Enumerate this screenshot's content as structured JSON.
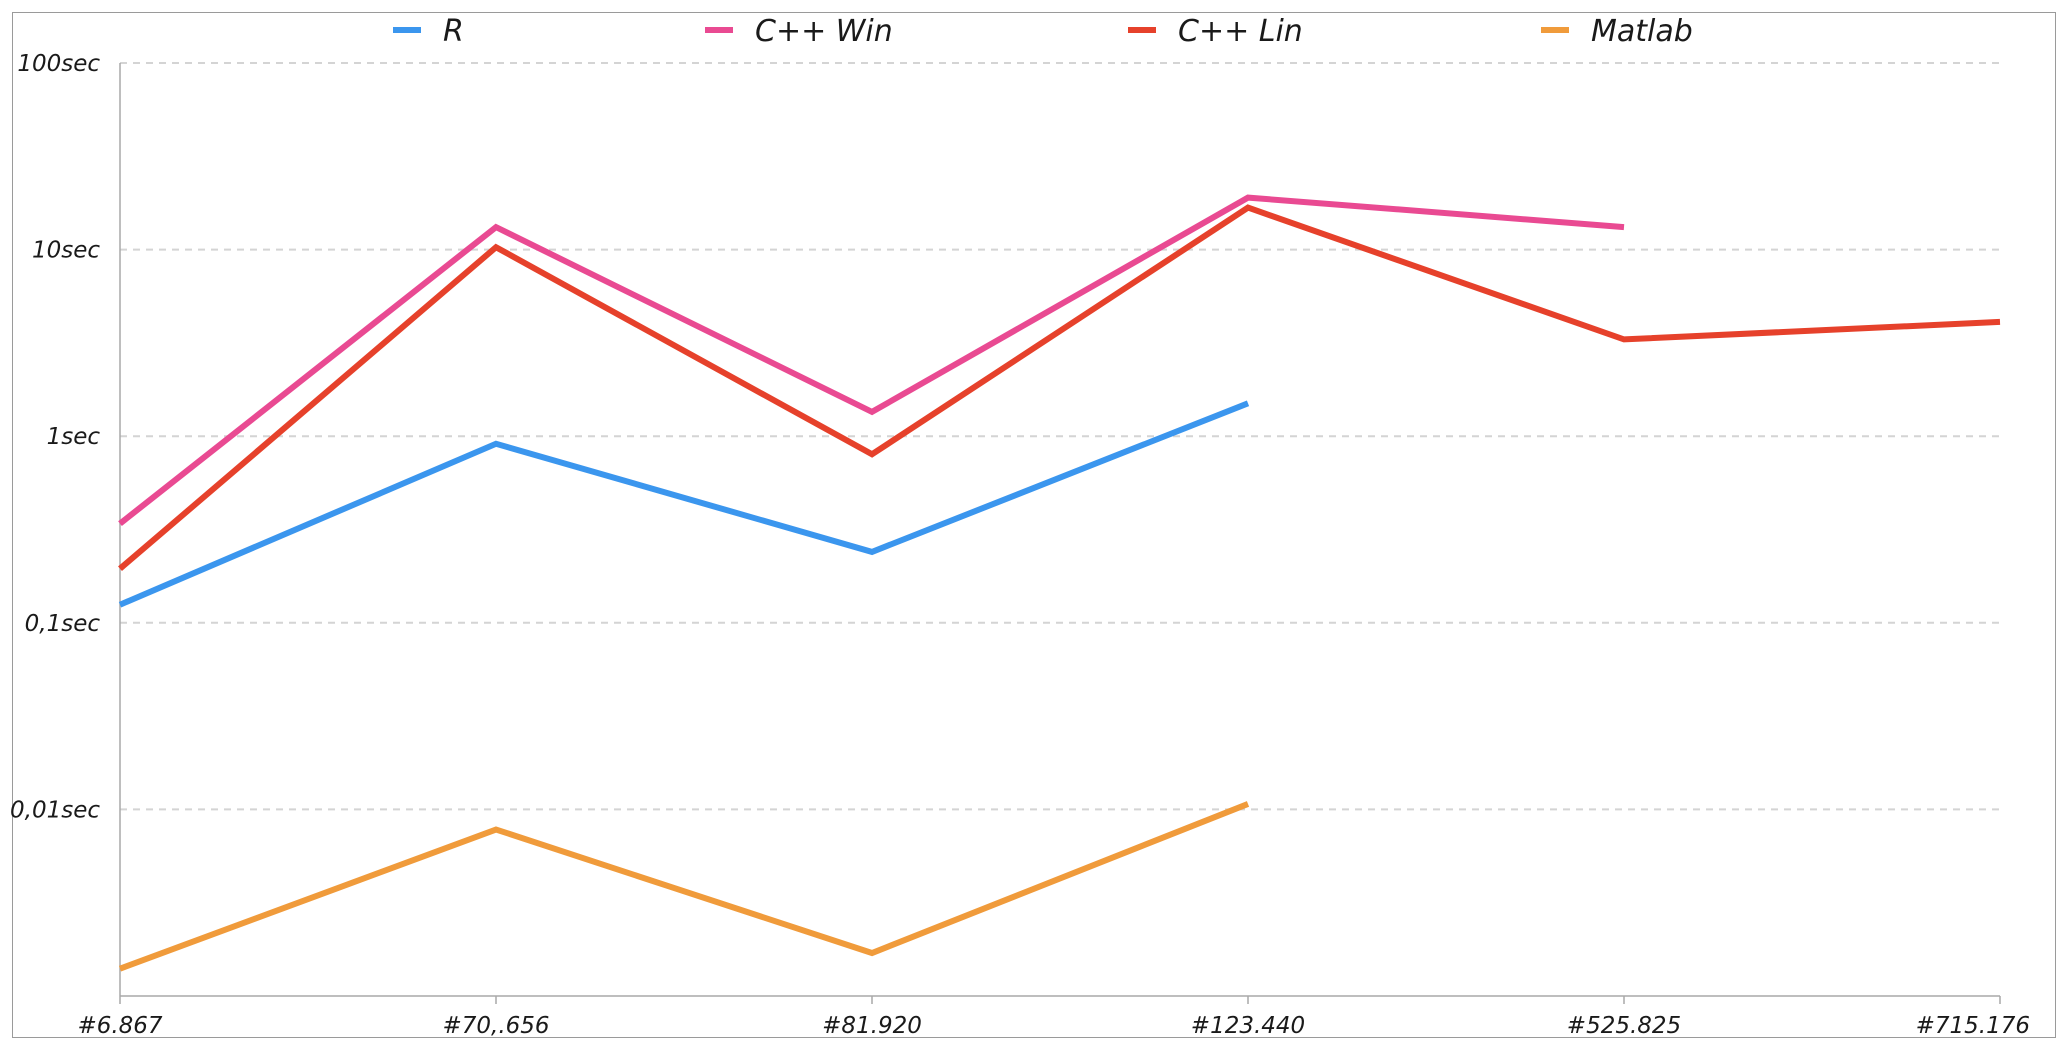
{
  "chart_data": {
    "type": "line",
    "y_scale": "log",
    "ylim": [
      0.001,
      100
    ],
    "y_ticks": [
      {
        "value": 100,
        "label": "100sec"
      },
      {
        "value": 10,
        "label": "10sec"
      },
      {
        "value": 1,
        "label": "1sec"
      },
      {
        "value": 0.1,
        "label": "0,1sec"
      },
      {
        "value": 0.01,
        "label": "0,01sec"
      }
    ],
    "categories": [
      "#6.867",
      "#70,.656",
      "#81.920",
      "#123.440",
      "#525.825",
      "#715.176"
    ],
    "grid": "horizontal dashed",
    "legend_position": "top",
    "series": [
      {
        "name": "R",
        "color": "#3b96ee",
        "values": [
          0.125,
          0.91,
          0.24,
          1.5,
          null,
          null
        ]
      },
      {
        "name": "C++ Win",
        "color": "#e94a92",
        "values": [
          0.34,
          13.2,
          1.35,
          19.0,
          13.2,
          null
        ]
      },
      {
        "name": "C++ Lin",
        "color": "#e6412b",
        "values": [
          0.195,
          10.3,
          0.8,
          16.8,
          3.3,
          4.1
        ]
      },
      {
        "name": "Matlab",
        "color": "#f09b3b",
        "values": [
          0.0014,
          0.0078,
          0.0017,
          0.0107,
          null,
          null
        ]
      }
    ]
  }
}
